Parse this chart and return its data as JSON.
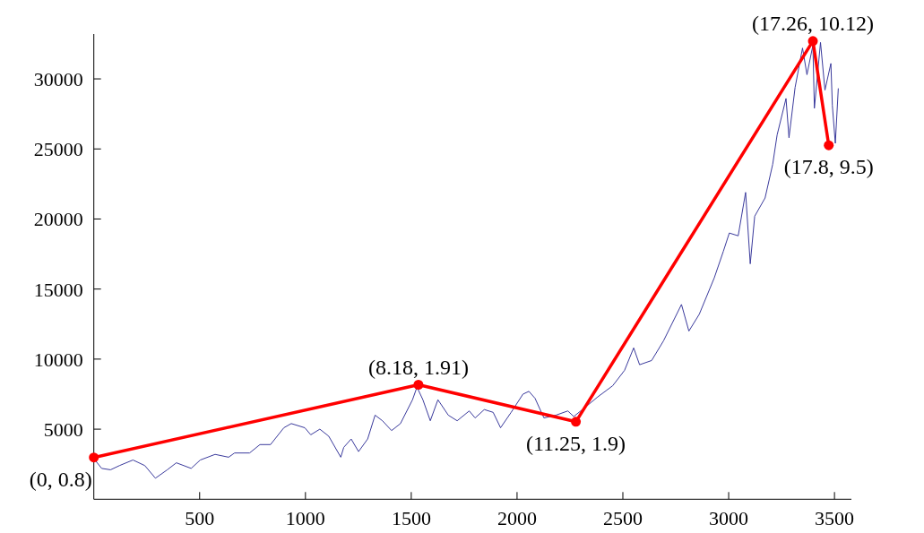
{
  "chart_data": {
    "type": "line",
    "xlim": [
      0,
      3580
    ],
    "ylim": [
      0,
      33200
    ],
    "xticks": [
      500,
      1000,
      1500,
      2000,
      2500,
      3000,
      3500
    ],
    "yticks": [
      5000,
      10000,
      15000,
      20000,
      25000,
      30000
    ],
    "grid": false,
    "series": [
      {
        "color": "#3a3a9c",
        "marker": "none",
        "x": [
          0,
          37,
          79,
          121,
          185,
          241,
          291,
          347,
          390,
          460,
          503,
          573,
          637,
          665,
          736,
          785,
          835,
          898,
          933,
          997,
          1025,
          1068,
          1110,
          1167,
          1181,
          1216,
          1251,
          1294,
          1329,
          1364,
          1407,
          1449,
          1506,
          1527,
          1555,
          1590,
          1626,
          1675,
          1717,
          1774,
          1802,
          1845,
          1887,
          1922,
          1972,
          2028,
          2056,
          2085,
          2127,
          2184,
          2240,
          2268,
          2325,
          2381,
          2452,
          2508,
          2551,
          2579,
          2636,
          2692,
          2777,
          2812,
          2861,
          2932,
          2975,
          3003,
          3045,
          3080,
          3102,
          3123,
          3172,
          3208,
          3229,
          3271,
          3285,
          3314,
          3349,
          3370,
          3398,
          3405,
          3434,
          3455,
          3483,
          3490,
          3504,
          3518
        ],
        "values": [
          2900,
          2200,
          2100,
          2400,
          2800,
          2400,
          1500,
          2100,
          2600,
          2200,
          2800,
          3200,
          3000,
          3300,
          3300,
          3900,
          3900,
          5100,
          5400,
          5100,
          4600,
          5000,
          4500,
          3000,
          3700,
          4300,
          3400,
          4300,
          6000,
          5600,
          4900,
          5400,
          7100,
          8000,
          7100,
          5600,
          7100,
          6000,
          5600,
          6300,
          5800,
          6400,
          6200,
          5100,
          6200,
          7500,
          7700,
          7200,
          5800,
          6000,
          6300,
          5900,
          6600,
          7300,
          8100,
          9200,
          10800,
          9600,
          9900,
          11300,
          13900,
          12000,
          13200,
          15800,
          17700,
          19000,
          18800,
          21900,
          16800,
          20200,
          21500,
          23900,
          26000,
          28600,
          25800,
          29400,
          32200,
          30300,
          32400,
          27900,
          32600,
          29200,
          31100,
          28100,
          25400,
          29300
        ]
      },
      {
        "color": "#ff0000",
        "marker": "circle",
        "x": [
          0,
          1534,
          2278,
          3398,
          3473
        ],
        "values": [
          2980,
          8170,
          5530,
          32700,
          25260
        ]
      }
    ],
    "annotations": [
      {
        "text": "(0, 0.8)",
        "x": 0,
        "y": 2980
      },
      {
        "text": "(8.18, 1.91)",
        "x": 1534,
        "y": 8170
      },
      {
        "text": "(11.25, 1.9)",
        "x": 2278,
        "y": 5530
      },
      {
        "text": "(17.26, 10.12)",
        "x": 3398,
        "y": 32700
      },
      {
        "text": "(17.8, 9.5)",
        "x": 3473,
        "y": 25260
      }
    ]
  }
}
